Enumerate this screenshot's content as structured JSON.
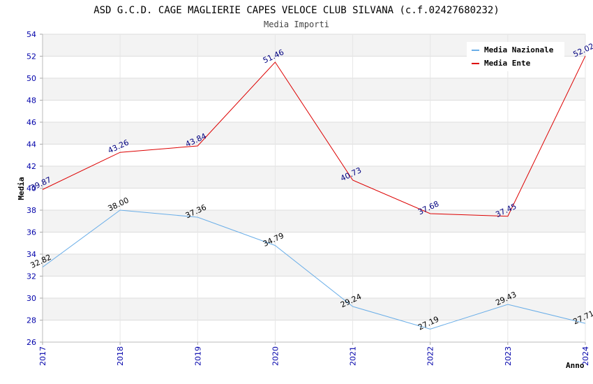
{
  "chart_data": {
    "type": "line",
    "title": "ASD G.C.D. CAGE MAGLIERIE CAPES VELOCE CLUB SILVANA (c.f.02427680232)",
    "subtitle": "Media Importi",
    "xlabel": "Anno",
    "ylabel": "Media",
    "ylim": [
      26,
      54
    ],
    "yticks": [
      "26",
      "28",
      "30",
      "32",
      "34",
      "36",
      "38",
      "40",
      "42",
      "44",
      "46",
      "48",
      "50",
      "52",
      "54"
    ],
    "x": [
      "2017",
      "2018",
      "2019",
      "2020",
      "2021",
      "2022",
      "2023",
      "2024"
    ],
    "grid": true,
    "legend_position": "top-right",
    "series": [
      {
        "name": "Media Nazionale",
        "color": "#6aaee8",
        "values": [
          32.82,
          38.0,
          37.36,
          34.79,
          29.24,
          27.19,
          29.43,
          27.71
        ],
        "labels": [
          "32.82",
          "38.00",
          "37.36",
          "34.79",
          "29.24",
          "27.19",
          "29.43",
          "27.71"
        ]
      },
      {
        "name": "Media Ente",
        "color": "#dd0000",
        "values": [
          39.87,
          43.26,
          43.84,
          51.46,
          40.73,
          37.68,
          37.45,
          52.02
        ],
        "labels": [
          "39.87",
          "43.26",
          "43.84",
          "51.46",
          "40.73",
          "37.68",
          "37.45",
          "52.02"
        ]
      }
    ]
  }
}
